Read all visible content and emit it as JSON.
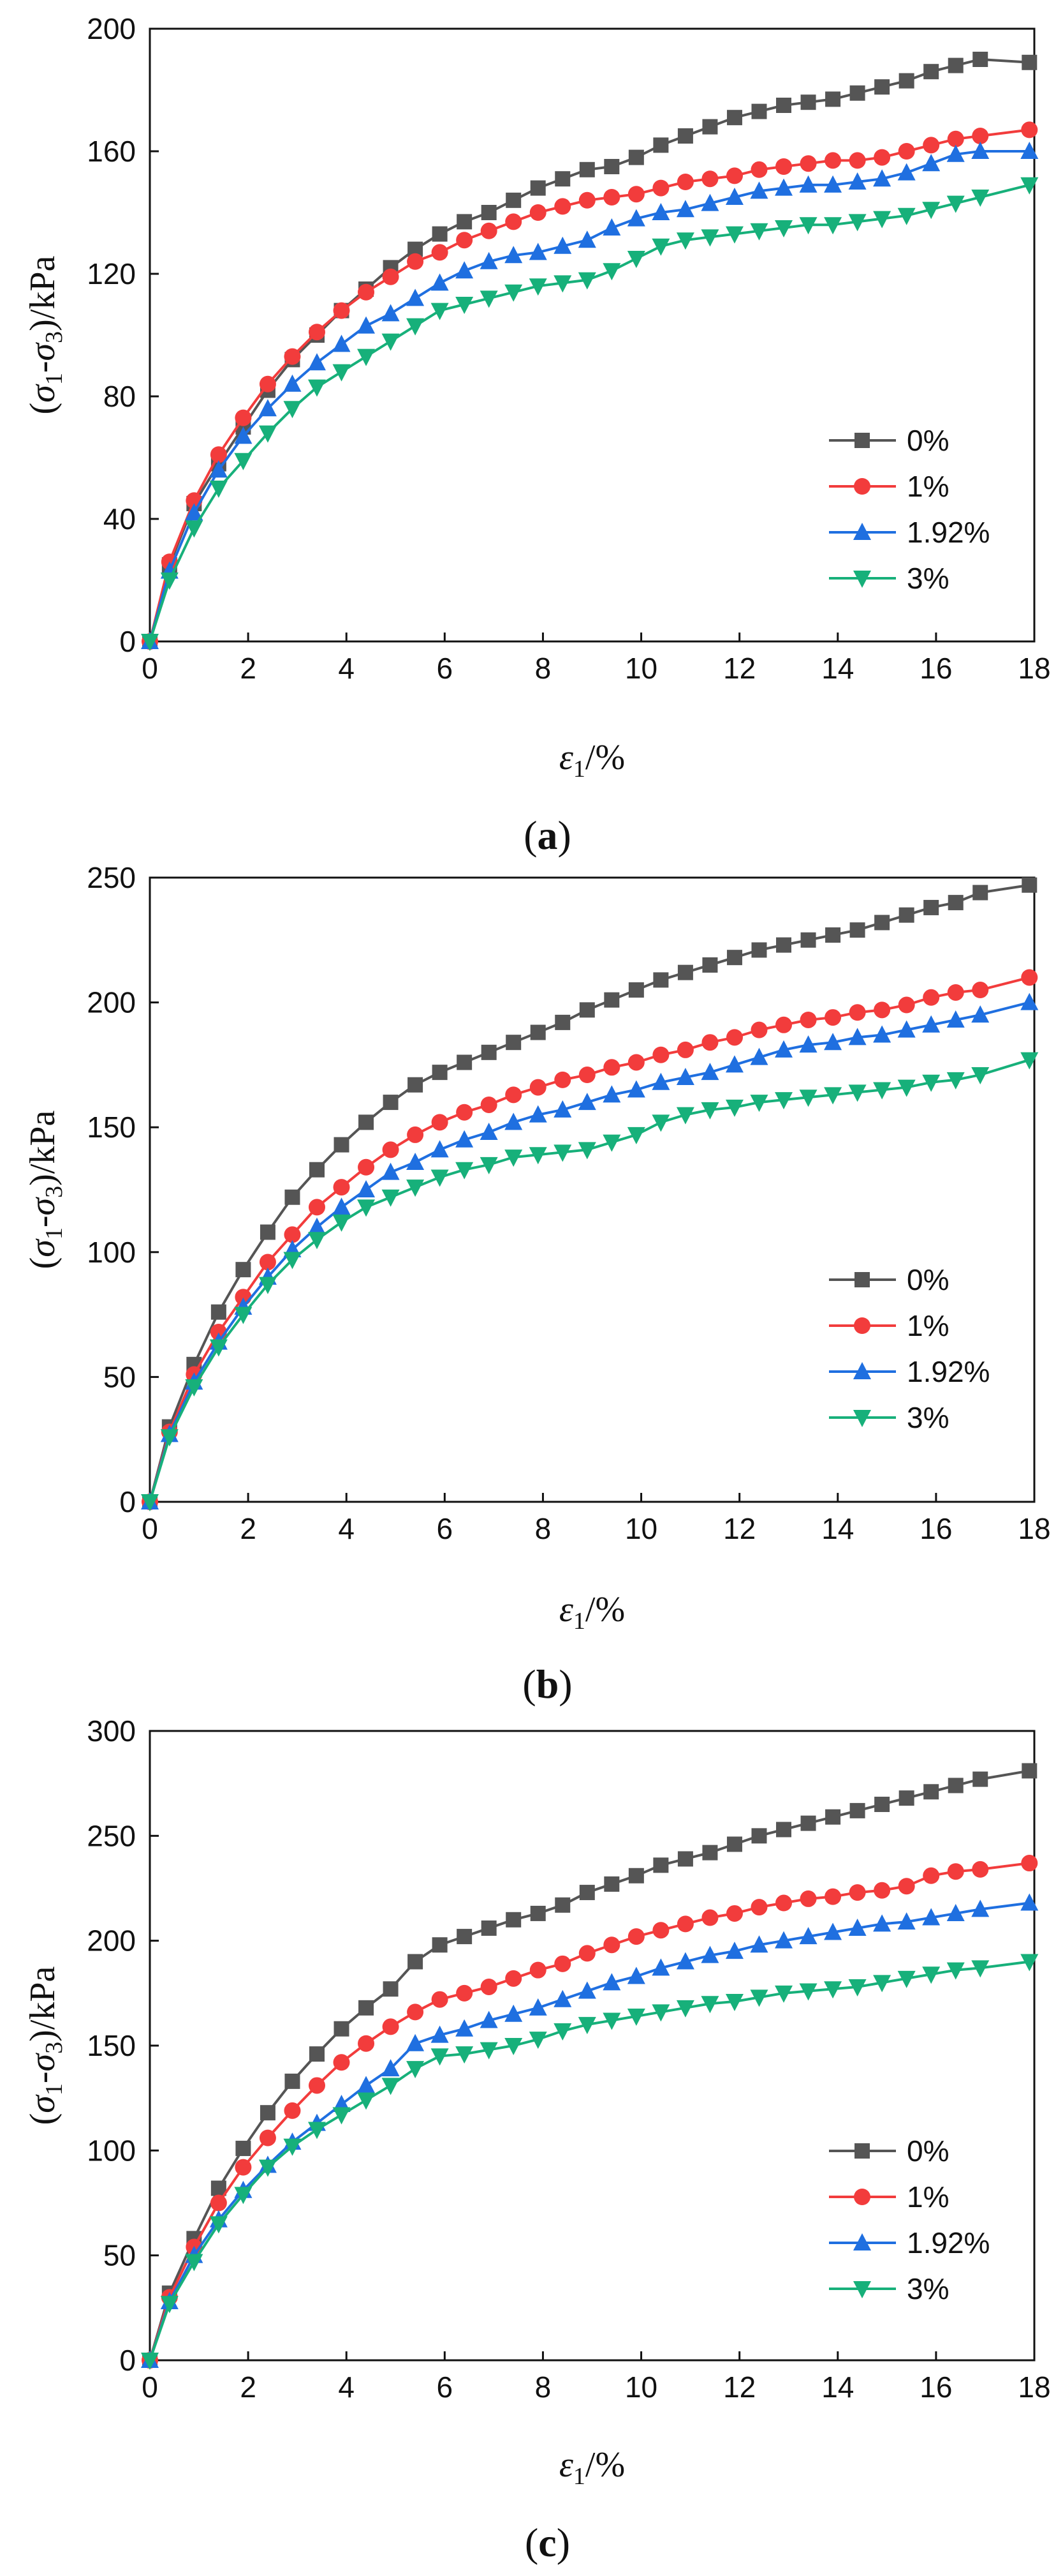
{
  "figure": {
    "panel_labels": [
      "a",
      "b",
      "c"
    ]
  },
  "styles": {
    "series_colors": [
      "#555555",
      "#f23c3c",
      "#1f6fe0",
      "#17b07a"
    ],
    "series_markers": [
      "square",
      "circle",
      "triangle-up",
      "triangle-down"
    ]
  },
  "chart_data": [
    {
      "type": "line",
      "panel": "a",
      "title": "",
      "xlabel_symbol": "ε",
      "xlabel_sub": "1",
      "xlabel_unit": "/%",
      "ylabel": "(σ1-σ3)/kPa",
      "ylabel_parts": {
        "open": "(",
        "s1": "σ",
        "sub1": "1",
        "dash": "-",
        "s3": "σ",
        "sub3": "3",
        "unit": ")/kPa"
      },
      "xlim": [
        0,
        18
      ],
      "ylim": [
        0,
        200
      ],
      "xticks": [
        "0",
        "2",
        "4",
        "6",
        "8",
        "10",
        "12",
        "14",
        "16",
        "18"
      ],
      "yticks": [
        "0",
        "40",
        "80",
        "120",
        "160",
        "200"
      ],
      "legend_position": "center-right",
      "x": [
        0,
        0.4,
        0.9,
        1.4,
        1.9,
        2.4,
        2.9,
        3.4,
        3.9,
        4.4,
        4.9,
        5.4,
        5.9,
        6.4,
        6.9,
        7.4,
        7.9,
        8.4,
        8.9,
        9.4,
        9.9,
        10.4,
        10.9,
        11.4,
        11.9,
        12.4,
        12.9,
        13.4,
        13.9,
        14.4,
        14.9,
        15.4,
        15.9,
        16.4,
        16.9,
        17.9
      ],
      "series": [
        {
          "name": "0%",
          "values": [
            0,
            25,
            45,
            58,
            70,
            82,
            92,
            100,
            108,
            115,
            122,
            128,
            133,
            137,
            140,
            144,
            148,
            151,
            154,
            155,
            158,
            162,
            165,
            168,
            171,
            173,
            175,
            176,
            177,
            179,
            181,
            183,
            186,
            188,
            190,
            189
          ]
        },
        {
          "name": "1%",
          "values": [
            0,
            26,
            46,
            61,
            73,
            84,
            93,
            101,
            108,
            114,
            119,
            124,
            127,
            131,
            134,
            137,
            140,
            142,
            144,
            145,
            146,
            148,
            150,
            151,
            152,
            154,
            155,
            156,
            157,
            157,
            158,
            160,
            162,
            164,
            165,
            167
          ]
        },
        {
          "name": "1.92%",
          "values": [
            0,
            23,
            42,
            56,
            67,
            76,
            84,
            91,
            97,
            103,
            107,
            112,
            117,
            121,
            124,
            126,
            127,
            129,
            131,
            135,
            138,
            140,
            141,
            143,
            145,
            147,
            148,
            149,
            149,
            150,
            151,
            153,
            156,
            159,
            160,
            160
          ]
        },
        {
          "name": "3%",
          "values": [
            0,
            20,
            37,
            50,
            59,
            68,
            76,
            83,
            88,
            93,
            98,
            103,
            108,
            110,
            112,
            114,
            116,
            117,
            118,
            121,
            125,
            129,
            131,
            132,
            133,
            134,
            135,
            136,
            136,
            137,
            138,
            139,
            141,
            143,
            145,
            149
          ]
        }
      ]
    },
    {
      "type": "line",
      "panel": "b",
      "title": "",
      "xlabel_symbol": "ε",
      "xlabel_sub": "1",
      "xlabel_unit": "/%",
      "ylabel": "(σ1-σ3)/kPa",
      "ylabel_parts": {
        "open": "(",
        "s1": "σ",
        "sub1": "1",
        "dash": "-",
        "s3": "σ",
        "sub3": "3",
        "unit": ")/kPa"
      },
      "xlim": [
        0,
        18
      ],
      "ylim": [
        0,
        250
      ],
      "xticks": [
        "0",
        "2",
        "4",
        "6",
        "8",
        "10",
        "12",
        "14",
        "16",
        "18"
      ],
      "yticks": [
        "0",
        "50",
        "100",
        "150",
        "200",
        "250"
      ],
      "legend_position": "center-right",
      "x": [
        0,
        0.4,
        0.9,
        1.4,
        1.9,
        2.4,
        2.9,
        3.4,
        3.9,
        4.4,
        4.9,
        5.4,
        5.9,
        6.4,
        6.9,
        7.4,
        7.9,
        8.4,
        8.9,
        9.4,
        9.9,
        10.4,
        10.9,
        11.4,
        11.9,
        12.4,
        12.9,
        13.4,
        13.9,
        14.4,
        14.9,
        15.4,
        15.9,
        16.4,
        16.9,
        17.9
      ],
      "series": [
        {
          "name": "0%",
          "values": [
            0,
            30,
            55,
            76,
            93,
            108,
            122,
            133,
            143,
            152,
            160,
            167,
            172,
            176,
            180,
            184,
            188,
            192,
            197,
            201,
            205,
            209,
            212,
            215,
            218,
            221,
            223,
            225,
            227,
            229,
            232,
            235,
            238,
            240,
            244,
            247
          ]
        },
        {
          "name": "1%",
          "values": [
            0,
            28,
            51,
            68,
            82,
            96,
            107,
            118,
            126,
            134,
            141,
            147,
            152,
            156,
            159,
            163,
            166,
            169,
            171,
            174,
            176,
            179,
            181,
            184,
            186,
            189,
            191,
            193,
            194,
            196,
            197,
            199,
            202,
            204,
            205,
            210
          ]
        },
        {
          "name": "1.92%",
          "values": [
            0,
            27,
            48,
            64,
            78,
            90,
            101,
            110,
            118,
            125,
            132,
            136,
            141,
            145,
            148,
            152,
            155,
            157,
            160,
            163,
            165,
            168,
            170,
            172,
            175,
            178,
            181,
            183,
            184,
            186,
            187,
            189,
            191,
            193,
            195,
            200
          ]
        },
        {
          "name": "3%",
          "values": [
            0,
            26,
            46,
            62,
            75,
            87,
            97,
            105,
            112,
            118,
            122,
            126,
            130,
            133,
            135,
            138,
            139,
            140,
            141,
            144,
            147,
            152,
            155,
            157,
            158,
            160,
            161,
            162,
            163,
            164,
            165,
            166,
            168,
            169,
            171,
            177
          ]
        }
      ]
    },
    {
      "type": "line",
      "panel": "c",
      "title": "",
      "xlabel_symbol": "ε",
      "xlabel_sub": "1",
      "xlabel_unit": "/%",
      "ylabel": "(σ1-σ3)/kPa",
      "ylabel_parts": {
        "open": "(",
        "s1": "σ",
        "sub1": "1",
        "dash": "-",
        "s3": "σ",
        "sub3": "3",
        "unit": ")/kPa"
      },
      "xlim": [
        0,
        18
      ],
      "ylim": [
        0,
        300
      ],
      "xticks": [
        "0",
        "2",
        "4",
        "6",
        "8",
        "10",
        "12",
        "14",
        "16",
        "18"
      ],
      "yticks": [
        "0",
        "50",
        "100",
        "150",
        "200",
        "250",
        "300"
      ],
      "legend_position": "bottom-right",
      "x": [
        0,
        0.4,
        0.9,
        1.4,
        1.9,
        2.4,
        2.9,
        3.4,
        3.9,
        4.4,
        4.9,
        5.4,
        5.9,
        6.4,
        6.9,
        7.4,
        7.9,
        8.4,
        8.9,
        9.4,
        9.9,
        10.4,
        10.9,
        11.4,
        11.9,
        12.4,
        12.9,
        13.4,
        13.9,
        14.4,
        14.9,
        15.4,
        15.9,
        16.4,
        16.9,
        17.9
      ],
      "series": [
        {
          "name": "0%",
          "values": [
            0,
            32,
            58,
            82,
            101,
            118,
            133,
            146,
            158,
            168,
            177,
            190,
            198,
            202,
            206,
            210,
            213,
            217,
            223,
            227,
            231,
            236,
            239,
            242,
            246,
            250,
            253,
            256,
            259,
            262,
            265,
            268,
            271,
            274,
            277,
            281
          ]
        },
        {
          "name": "1%",
          "values": [
            0,
            30,
            54,
            75,
            92,
            106,
            119,
            131,
            142,
            151,
            159,
            166,
            172,
            175,
            178,
            182,
            186,
            189,
            194,
            198,
            202,
            205,
            208,
            211,
            213,
            216,
            218,
            220,
            221,
            223,
            224,
            226,
            231,
            233,
            234,
            237
          ]
        },
        {
          "name": "1.92%",
          "values": [
            0,
            28,
            50,
            67,
            81,
            93,
            104,
            113,
            122,
            131,
            139,
            151,
            155,
            158,
            162,
            165,
            168,
            172,
            176,
            180,
            183,
            187,
            190,
            193,
            195,
            198,
            200,
            202,
            204,
            206,
            208,
            209,
            211,
            213,
            215,
            218
          ]
        },
        {
          "name": "3%",
          "values": [
            0,
            27,
            47,
            65,
            79,
            92,
            102,
            110,
            117,
            124,
            131,
            139,
            145,
            146,
            148,
            150,
            153,
            157,
            160,
            162,
            164,
            166,
            168,
            170,
            171,
            173,
            175,
            176,
            177,
            178,
            180,
            182,
            184,
            186,
            187,
            190
          ]
        }
      ]
    }
  ]
}
